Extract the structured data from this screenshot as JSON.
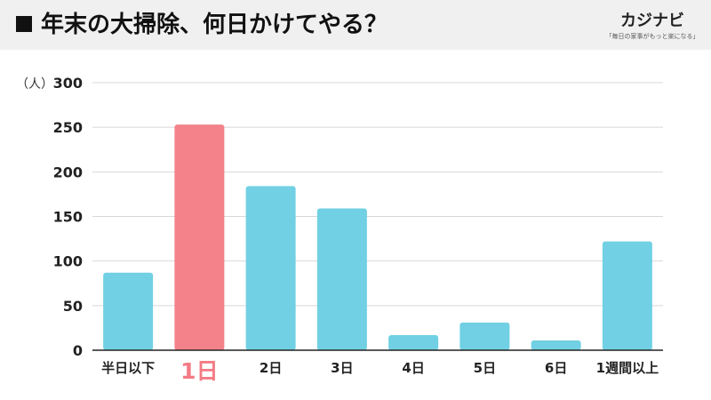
{
  "header": {
    "title": "年末の大掃除、何日かけてやる？"
  },
  "brand": {
    "name": "カジナビ",
    "tagline": "「毎日の家事がもっと楽になる」"
  },
  "chart_data": {
    "type": "bar",
    "title": "年末の大掃除、何日かけてやる？",
    "xlabel": "",
    "ylabel": "（人）",
    "ylim": [
      0,
      300
    ],
    "yticks": [
      0,
      50,
      100,
      150,
      200,
      250,
      300
    ],
    "grid": true,
    "categories": [
      "半日以下",
      "1日",
      "2日",
      "3日",
      "4日",
      "5日",
      "6日",
      "1週間以上"
    ],
    "values": [
      87,
      253,
      184,
      159,
      17,
      31,
      11,
      122
    ],
    "highlight_index": 1,
    "colors": {
      "bar": "#71d0e3",
      "highlight": "#f3828a",
      "grid": "#d8d8d8",
      "axis": "#222222",
      "highlight_label": "#f47b84"
    }
  }
}
